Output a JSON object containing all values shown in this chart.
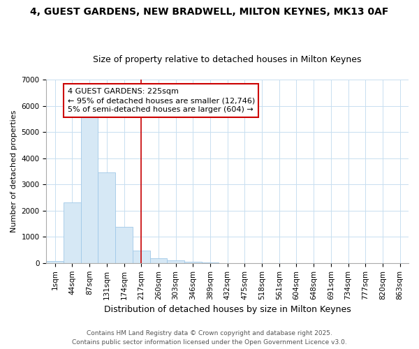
{
  "title_line1": "4, GUEST GARDENS, NEW BRADWELL, MILTON KEYNES, MK13 0AF",
  "title_line2": "Size of property relative to detached houses in Milton Keynes",
  "xlabel": "Distribution of detached houses by size in Milton Keynes",
  "ylabel": "Number of detached properties",
  "categories": [
    "1sqm",
    "44sqm",
    "87sqm",
    "131sqm",
    "174sqm",
    "217sqm",
    "260sqm",
    "303sqm",
    "346sqm",
    "389sqm",
    "432sqm",
    "475sqm",
    "518sqm",
    "561sqm",
    "604sqm",
    "648sqm",
    "691sqm",
    "734sqm",
    "777sqm",
    "820sqm",
    "863sqm"
  ],
  "values": [
    70,
    2300,
    5580,
    3450,
    1380,
    470,
    175,
    90,
    40,
    10,
    0,
    0,
    0,
    0,
    0,
    0,
    0,
    0,
    0,
    0,
    0
  ],
  "bar_color": "#d6e8f5",
  "bar_edgecolor": "#a0c8e8",
  "vline_index": 5,
  "vline_color": "#cc0000",
  "ylim": [
    0,
    7000
  ],
  "yticks": [
    0,
    1000,
    2000,
    3000,
    4000,
    5000,
    6000,
    7000
  ],
  "annotation_text": "4 GUEST GARDENS: 225sqm\n← 95% of detached houses are smaller (12,746)\n5% of semi-detached houses are larger (604) →",
  "footer_line1": "Contains HM Land Registry data © Crown copyright and database right 2025.",
  "footer_line2": "Contains public sector information licensed under the Open Government Licence v3.0.",
  "bg_color": "#ffffff",
  "grid_color": "#c8dff0",
  "title_fontsize": 10,
  "subtitle_fontsize": 9,
  "xlabel_fontsize": 9,
  "ylabel_fontsize": 8,
  "tick_fontsize": 7.5,
  "footer_fontsize": 6.5,
  "ann_fontsize": 8
}
